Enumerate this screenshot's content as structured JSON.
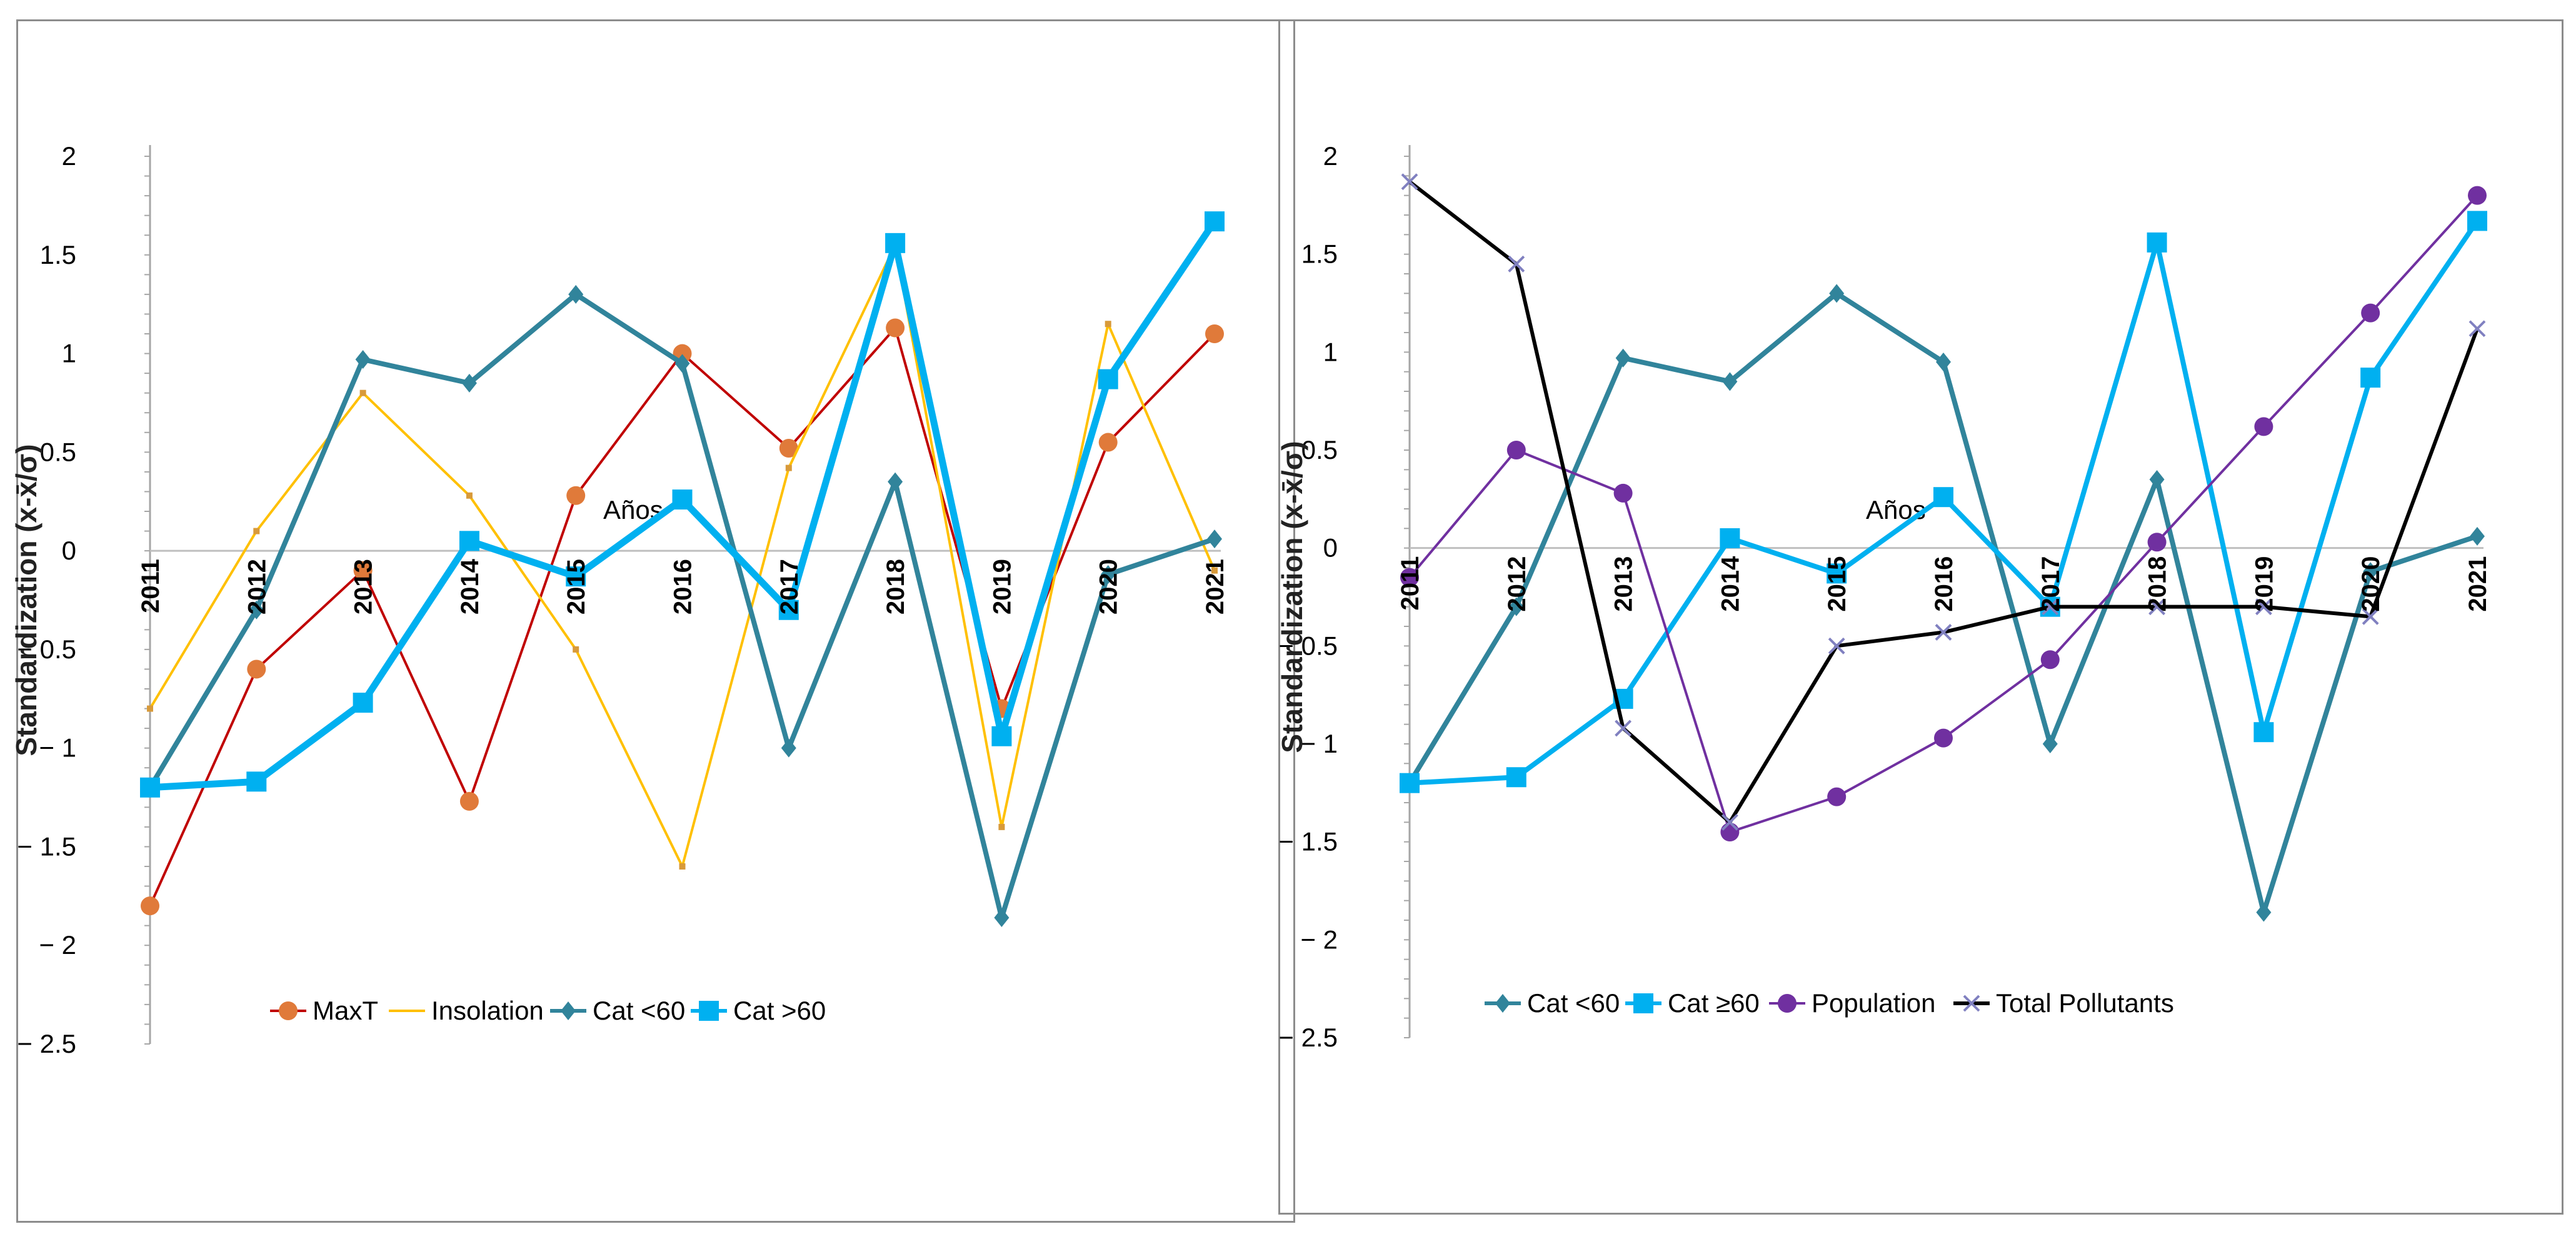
{
  "chart_data": [
    {
      "type": "line",
      "title": "",
      "ylabel": "Standardization (x-x̄/σ)",
      "xlabel": "Años",
      "categories": [
        "2011",
        "2012",
        "2013",
        "2014",
        "2015",
        "2016",
        "2017",
        "2018",
        "2019",
        "2020",
        "2021"
      ],
      "ylim": [
        -2.5,
        2
      ],
      "y_ticks": [
        "2",
        "1.5",
        "1",
        "0.5",
        "0",
        "-0.5",
        "-1",
        "-1.5",
        "-2",
        "-2.5"
      ],
      "legend": [
        "MaxT",
        "Insolation",
        "Cat <60",
        "Cat >60"
      ],
      "series": [
        {
          "name": "MaxT",
          "color": "#c00000",
          "marker": "circle",
          "marker_color": "#e07a3a",
          "width": 4,
          "values": [
            -1.8,
            -0.6,
            -0.1,
            -1.27,
            0.28,
            1.0,
            0.52,
            1.13,
            -0.8,
            0.55,
            1.1
          ]
        },
        {
          "name": "Insolation",
          "color": "#ffc000",
          "marker": "small",
          "marker_color": "#d89a3a",
          "width": 4,
          "values": [
            -0.8,
            0.1,
            0.8,
            0.28,
            -0.5,
            -1.6,
            0.42,
            1.55,
            -1.4,
            1.15,
            -0.1
          ]
        },
        {
          "name": "Cat <60",
          "color": "#31849b",
          "marker": "diamond",
          "marker_color": "#31849b",
          "width": 8,
          "values": [
            -1.2,
            -0.3,
            0.97,
            0.85,
            1.3,
            0.95,
            -1.0,
            0.35,
            -1.86,
            -0.12,
            0.06
          ]
        },
        {
          "name": "Cat >60",
          "color": "#00b0f0",
          "marker": "square",
          "marker_color": "#00b0f0",
          "width": 11,
          "values": [
            -1.2,
            -1.17,
            -0.77,
            0.05,
            -0.13,
            0.26,
            -0.3,
            1.56,
            -0.94,
            0.87,
            1.67
          ]
        }
      ]
    },
    {
      "type": "line",
      "title": "",
      "ylabel": "Standardization (x-x̄/σ)",
      "xlabel": "Años",
      "categories": [
        "2011",
        "2012",
        "2013",
        "2014",
        "2015",
        "2016",
        "2017",
        "2018",
        "2019",
        "2020",
        "2021"
      ],
      "ylim": [
        -2.5,
        2
      ],
      "y_ticks": [
        "2",
        "1.5",
        "1",
        "0.5",
        "0",
        "-0.5",
        "-1",
        "-1.5",
        "-2",
        "-2.5"
      ],
      "legend": [
        "Cat <60",
        "Cat ≥60",
        "Population",
        "Total Pollutants"
      ],
      "series": [
        {
          "name": "Cat <60",
          "color": "#31849b",
          "marker": "diamond",
          "marker_color": "#31849b",
          "width": 8,
          "values": [
            -1.2,
            -0.3,
            0.97,
            0.85,
            1.3,
            0.95,
            -1.0,
            0.35,
            -1.86,
            -0.12,
            0.06
          ]
        },
        {
          "name": "Cat ≥60",
          "color": "#00b0f0",
          "marker": "square",
          "marker_color": "#00b0f0",
          "width": 8,
          "values": [
            -1.2,
            -1.17,
            -0.77,
            0.05,
            -0.13,
            0.26,
            -0.3,
            1.56,
            -0.94,
            0.87,
            1.67
          ]
        },
        {
          "name": "Population",
          "color": "#7030a0",
          "marker": "circle",
          "marker_color": "#7030a0",
          "width": 4,
          "values": [
            -0.15,
            0.5,
            0.28,
            -1.45,
            -1.27,
            -0.97,
            -0.57,
            0.03,
            0.62,
            1.2,
            1.8
          ]
        },
        {
          "name": "Total Pollutants",
          "color": "#000000",
          "marker": "x",
          "marker_color": "#8080c0",
          "width": 6,
          "values": [
            1.87,
            1.45,
            -0.92,
            -1.4,
            -0.5,
            -0.43,
            -0.3,
            -0.3,
            -0.3,
            -0.35,
            1.12
          ]
        }
      ]
    }
  ]
}
